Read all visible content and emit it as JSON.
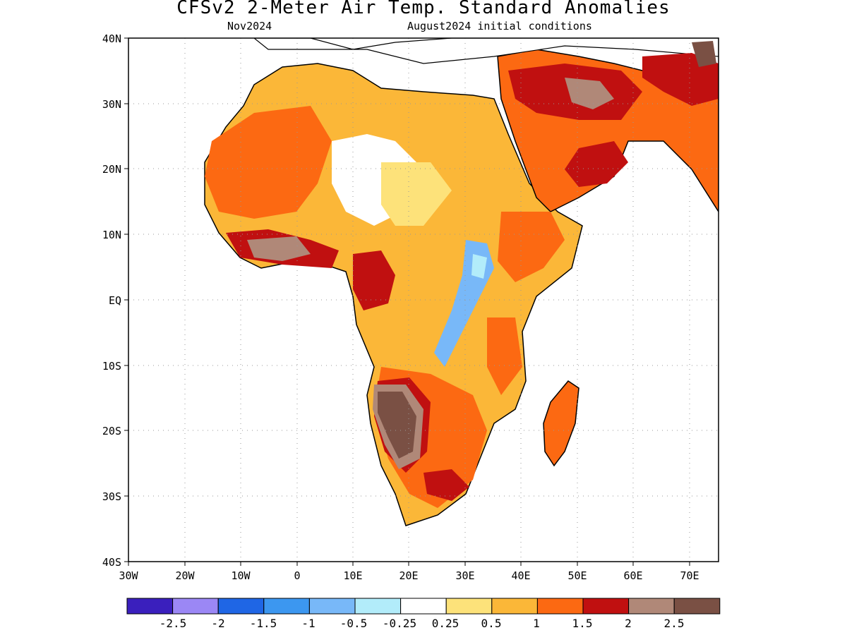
{
  "title": "CFSv2 2-Meter Air Temp. Standard Anomalies",
  "valid_period": "Nov2024",
  "initial_conditions": "August2024 initial conditions",
  "axes": {
    "lon_labels": [
      "30W",
      "20W",
      "10W",
      "0",
      "10E",
      "20E",
      "30E",
      "40E",
      "50E",
      "60E",
      "70E"
    ],
    "lat_labels": [
      "40N",
      "30N",
      "20N",
      "10N",
      "EQ",
      "10S",
      "20S",
      "30S",
      "40S"
    ]
  },
  "colorbar": {
    "colors": [
      "#3a1fbd",
      "#9b87f5",
      "#1f66e5",
      "#3c97f0",
      "#78b8f8",
      "#b2ecfa",
      "#ffffff",
      "#fde27a",
      "#fbb738",
      "#fc6912",
      "#c01010",
      "#b08878",
      "#7a5044"
    ],
    "labels": [
      "-2.5",
      "-2",
      "-1.5",
      "-1",
      "-0.5",
      "-0.25",
      "0.25",
      "0.5",
      "1",
      "1.5",
      "2",
      "2.5"
    ]
  },
  "regions": [
    {
      "name": "sahara-west",
      "color": "#fc6912"
    },
    {
      "name": "sahara-central",
      "color": "#fbb738"
    },
    {
      "name": "arabia",
      "color": "#c01010"
    },
    {
      "name": "namibia",
      "color": "#7a5044"
    },
    {
      "name": "east-africa",
      "color": "#78b8f8"
    }
  ]
}
